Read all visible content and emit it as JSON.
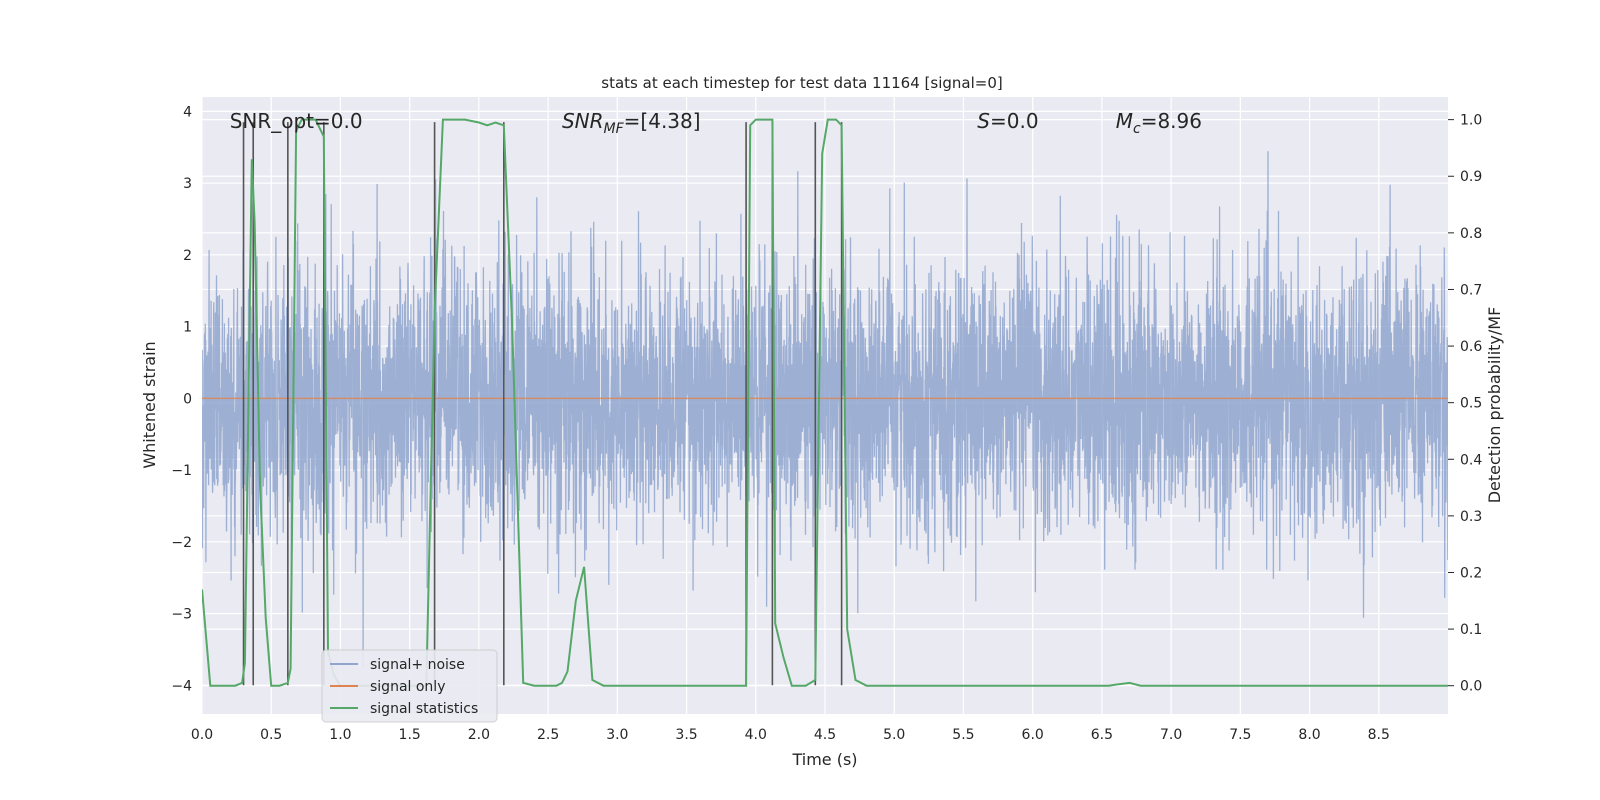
{
  "chart_data": {
    "type": "line",
    "title": "stats at each timestep for test data 11164 [signal=0]",
    "xlabel": "Time (s)",
    "ylabel": "Whitened strain",
    "y2label": "Detection probability/MF",
    "xlim": [
      0.0,
      9.0
    ],
    "ylim": [
      -4.4,
      4.2
    ],
    "y2lim": [
      -0.05,
      1.04
    ],
    "xticks": [
      "0.0",
      "0.5",
      "1.0",
      "1.5",
      "2.0",
      "2.5",
      "3.0",
      "3.5",
      "4.0",
      "4.5",
      "5.0",
      "5.5",
      "6.0",
      "6.5",
      "7.0",
      "7.5",
      "8.0",
      "8.5"
    ],
    "yticks": [
      "4",
      "3",
      "2",
      "1",
      "0",
      "−1",
      "−2",
      "−3",
      "−4"
    ],
    "y2ticks": [
      "1.0",
      "0.9",
      "0.8",
      "0.7",
      "0.6",
      "0.5",
      "0.4",
      "0.3",
      "0.2",
      "0.1",
      "0.0"
    ],
    "grid": true,
    "legend_position": "lower-left",
    "annotations": [
      {
        "text": "SNR_opt=0.0",
        "x": 0.2,
        "y": 3.85
      },
      {
        "text": "SNR",
        "sub": "MF",
        "suffix": "=[4.38]",
        "x": 2.6,
        "y": 3.85,
        "italic": true
      },
      {
        "text": "S",
        "suffix": "=0.0",
        "x": 5.6,
        "y": 3.85,
        "italic": true
      },
      {
        "text": "M",
        "sub": "c",
        "suffix": "=8.96",
        "x": 6.6,
        "y": 3.85,
        "italic": true
      }
    ],
    "vlines": [
      0.3,
      0.37,
      0.62,
      0.88,
      1.68,
      2.18,
      3.93,
      4.12,
      4.43,
      4.62
    ],
    "vline_range": [
      -4.0,
      3.85
    ],
    "series": [
      {
        "name": "signal+ noise",
        "color": "#8fa6cf",
        "axis": "left",
        "noise": {
          "dt": 0.0015,
          "pos_max": [
            1.3,
            2.2,
            3.95
          ],
          "neg_min": [
            -1.7,
            -2.4,
            -3.75
          ],
          "seed": 11164
        }
      },
      {
        "name": "signal only",
        "color": "#dd8452",
        "axis": "left",
        "x": [
          0.0,
          9.0
        ],
        "y": [
          0.0,
          0.0
        ]
      },
      {
        "name": "signal statistics",
        "color": "#55a868",
        "axis": "right",
        "x": [
          0.0,
          0.06,
          0.12,
          0.18,
          0.24,
          0.29,
          0.31,
          0.36,
          0.38,
          0.42,
          0.46,
          0.5,
          0.56,
          0.62,
          0.64,
          0.68,
          0.72,
          0.78,
          0.82,
          0.86,
          0.88,
          0.91,
          0.95,
          1.0,
          1.62,
          1.68,
          1.74,
          1.8,
          1.9,
          2.0,
          2.06,
          2.12,
          2.18,
          2.24,
          2.32,
          2.4,
          2.5,
          2.56,
          2.6,
          2.64,
          2.7,
          2.76,
          2.82,
          2.9,
          3.0,
          3.93,
          3.96,
          4.0,
          4.06,
          4.12,
          4.14,
          4.2,
          4.26,
          4.36,
          4.43,
          4.48,
          4.52,
          4.58,
          4.62,
          4.66,
          4.72,
          4.8,
          5.0,
          6.55,
          6.6,
          6.7,
          6.78,
          6.9,
          9.0
        ],
        "y": [
          0.17,
          0.0,
          0.0,
          0.0,
          0.0,
          0.005,
          0.04,
          0.93,
          0.82,
          0.35,
          0.12,
          0.0,
          0.0,
          0.005,
          0.03,
          0.98,
          1.0,
          1.0,
          1.0,
          0.98,
          0.97,
          0.06,
          0.02,
          0.0,
          0.0,
          0.66,
          1.0,
          1.0,
          1.0,
          0.995,
          0.99,
          0.995,
          0.99,
          0.64,
          0.005,
          0.0,
          0.0,
          0.0,
          0.005,
          0.025,
          0.15,
          0.21,
          0.01,
          0.0,
          0.0,
          0.0,
          0.99,
          1.0,
          1.0,
          1.0,
          0.11,
          0.05,
          0.0,
          0.0,
          0.01,
          0.94,
          1.0,
          1.0,
          0.99,
          0.1,
          0.01,
          0.0,
          0.0,
          0.0,
          0.002,
          0.005,
          0.0,
          0.0,
          0.0
        ]
      }
    ]
  }
}
